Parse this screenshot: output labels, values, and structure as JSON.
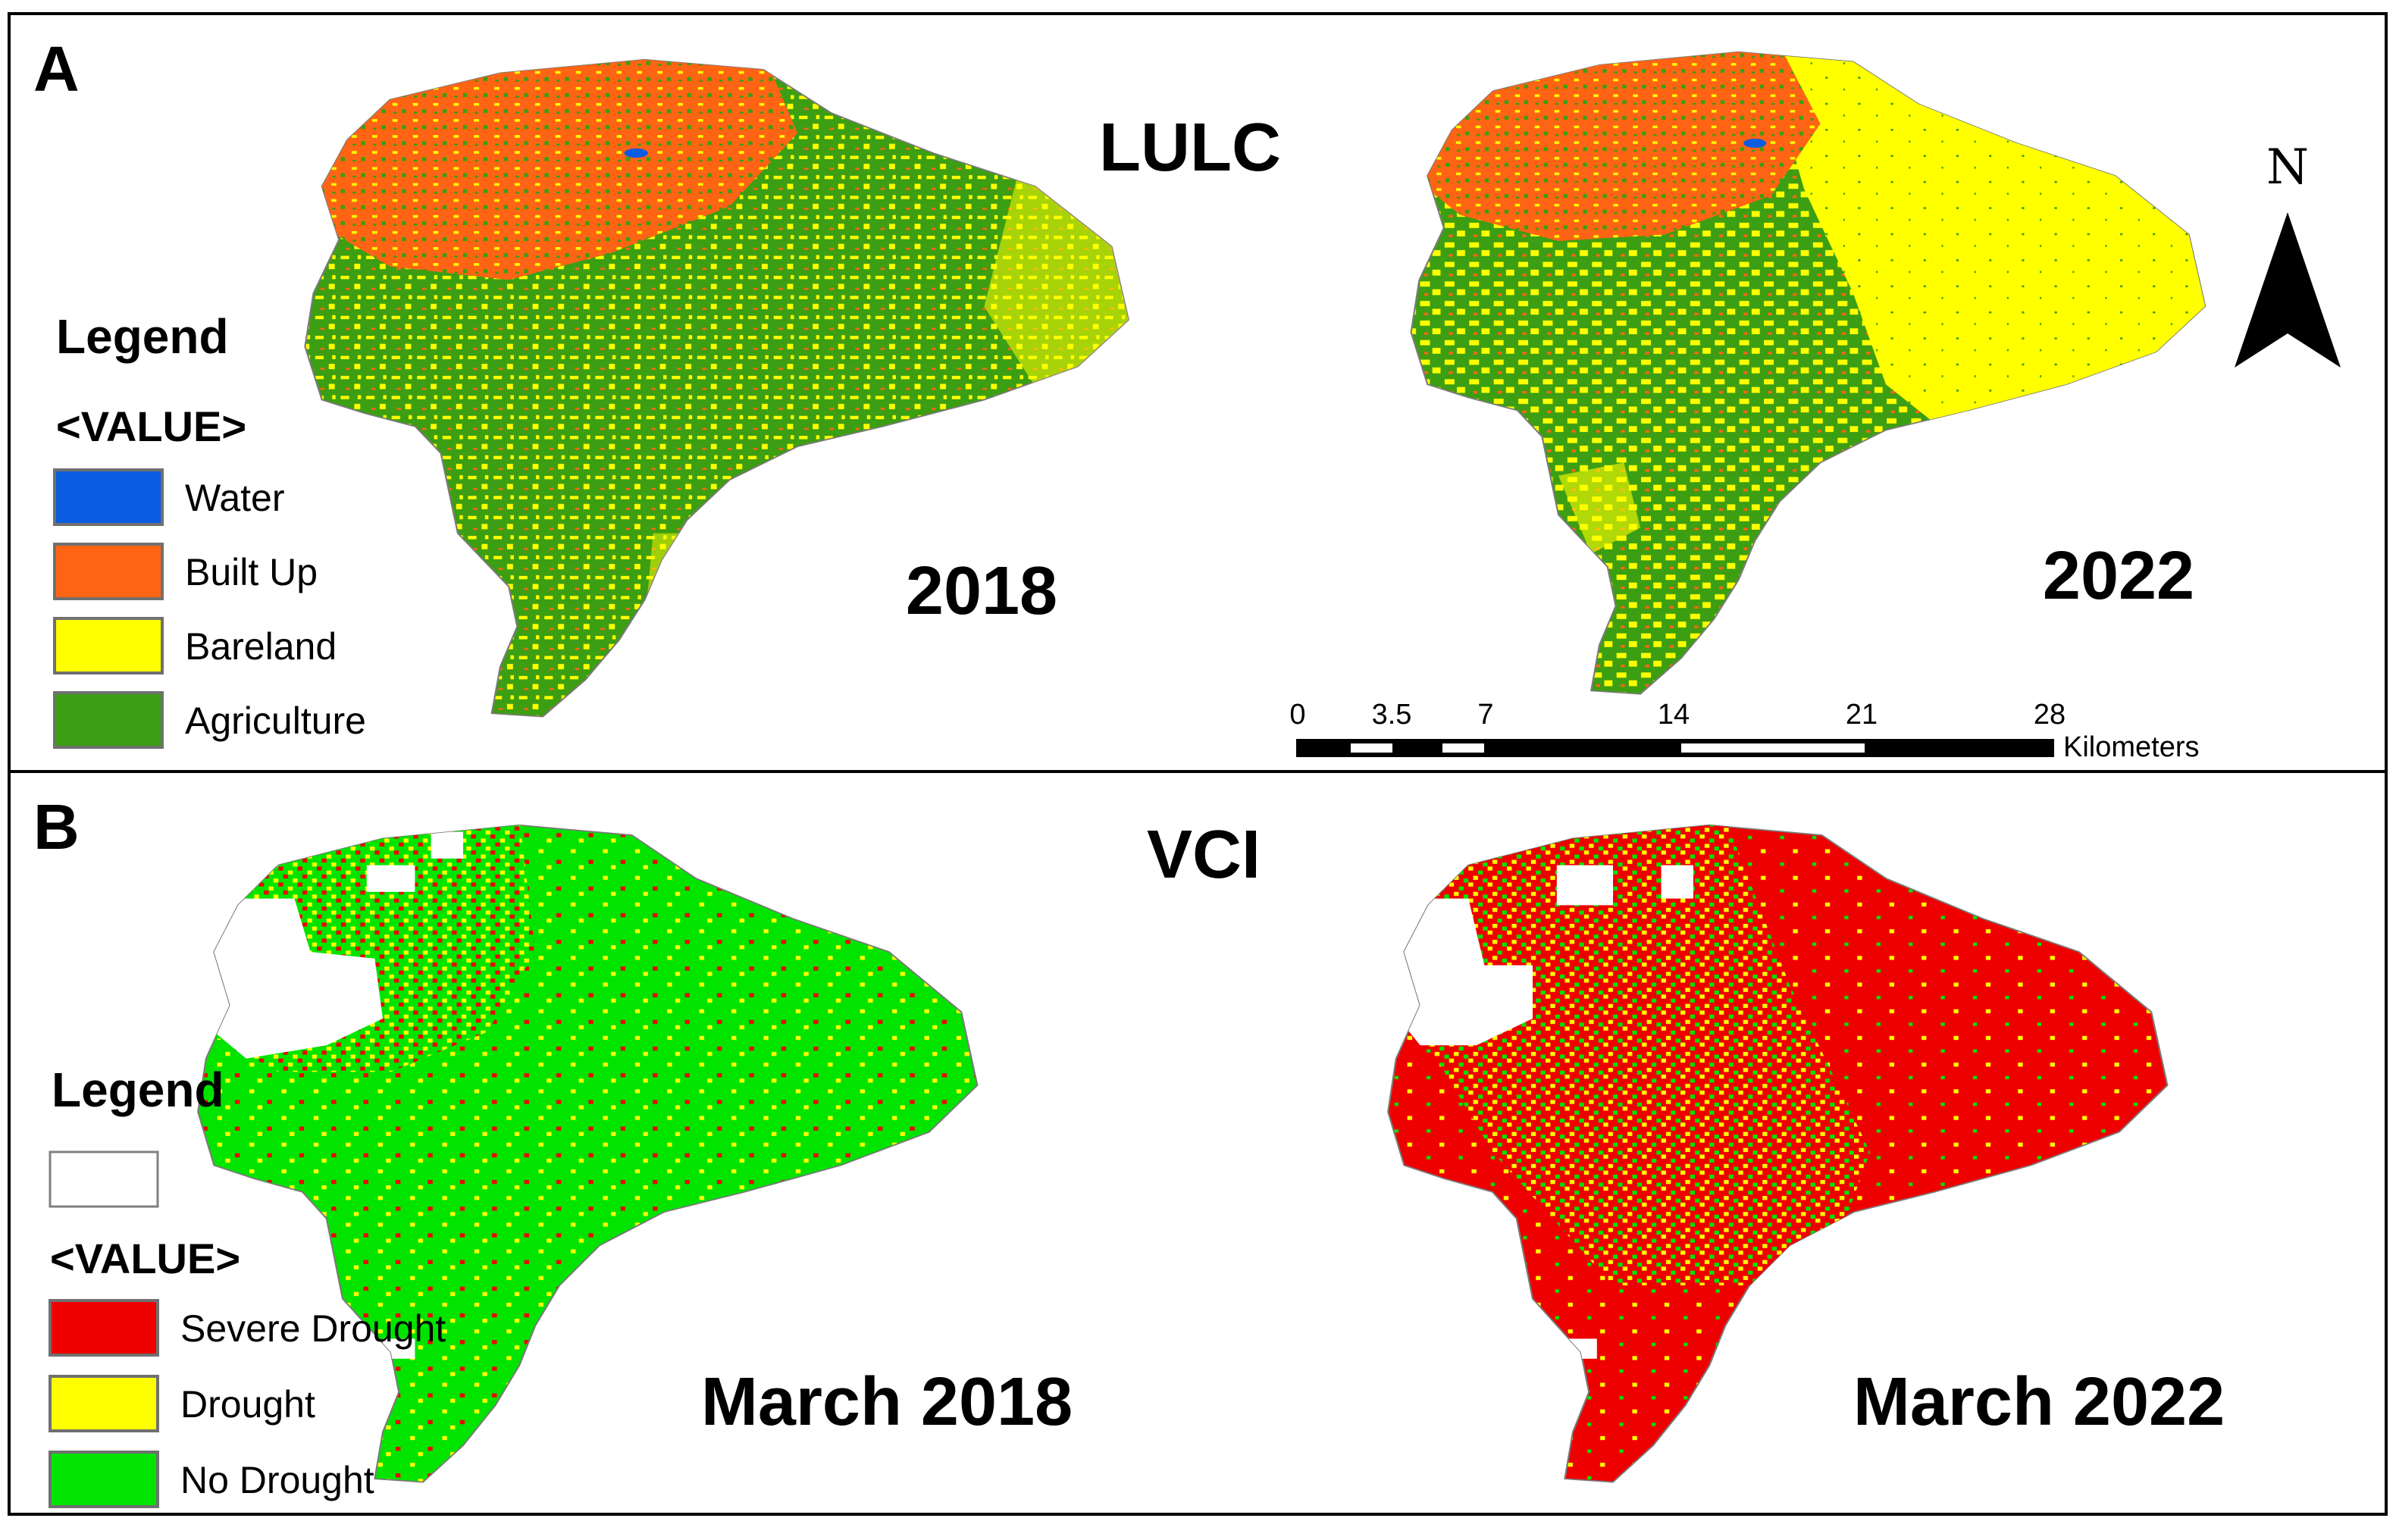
{
  "panel_a": {
    "letter": "A",
    "title": "LULC",
    "map_left_year": "2018",
    "map_right_year": "2022",
    "legend_title": "Legend",
    "legend_value_label": "<VALUE>",
    "legend_items": [
      {
        "label": "Water",
        "color": "#0a5ce0"
      },
      {
        "label": "Built Up",
        "color": "#ff6414"
      },
      {
        "label": "Bareland",
        "color": "#ffff00"
      },
      {
        "label": "Agriculture",
        "color": "#3c9e12"
      }
    ],
    "north_label": "N",
    "scale_ticks": [
      "0",
      "3.5",
      "7",
      "14",
      "21",
      "28"
    ],
    "scale_unit": "Kilometers"
  },
  "panel_b": {
    "letter": "B",
    "title": "VCI",
    "map_left_label": "March 2018",
    "map_right_label": "March 2022",
    "legend_title": "Legend",
    "legend_value_label": "<VALUE>",
    "legend_blank_color": "#ffffff",
    "legend_items": [
      {
        "label": "Severe Drought",
        "color": "#ef0000"
      },
      {
        "label": "Drought",
        "color": "#ffff00"
      },
      {
        "label": "No Drought",
        "color": "#00e400"
      }
    ]
  }
}
